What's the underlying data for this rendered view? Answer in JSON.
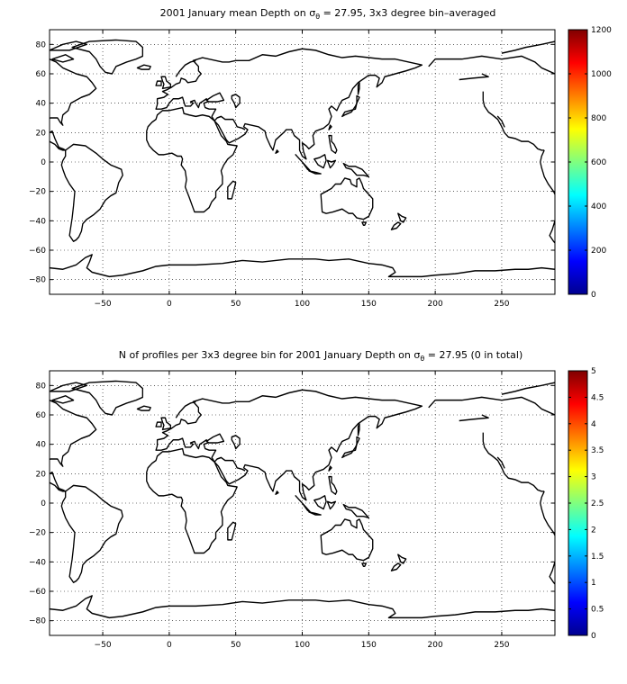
{
  "chart_data": [
    {
      "type": "heatmap",
      "title_parts": [
        "2001 January mean Depth on ",
        "σ",
        "θ",
        " = 27.95, 3x3 degree bin–averaged"
      ],
      "xlim": [
        -90,
        290
      ],
      "ylim": [
        -90,
        90
      ],
      "x_ticks": [
        -50,
        0,
        50,
        100,
        150,
        200,
        250
      ],
      "x_tick_labels": [
        "−50",
        "0",
        "50",
        "100",
        "150",
        "200",
        "250"
      ],
      "y_ticks": [
        80,
        60,
        40,
        20,
        0,
        -20,
        -40,
        -60,
        -80
      ],
      "y_tick_labels": [
        "80",
        "60",
        "40",
        "20",
        "0",
        "−20",
        "−40",
        "−60",
        "−80"
      ],
      "grid": true,
      "colorbar": {
        "min": 0,
        "max": 1200,
        "colormap": "jet",
        "ticks": [
          0,
          200,
          400,
          600,
          800,
          1000,
          1200
        ],
        "tick_labels": [
          "0",
          "200",
          "400",
          "600",
          "800",
          "1000",
          "1200"
        ]
      },
      "values": []
    },
    {
      "type": "heatmap",
      "title_parts": [
        "N of profiles per 3x3 degree bin for 2001 January Depth on ",
        "σ",
        "θ",
        " = 27.95 (0 in total)"
      ],
      "xlim": [
        -90,
        290
      ],
      "ylim": [
        -90,
        90
      ],
      "x_ticks": [
        -50,
        0,
        50,
        100,
        150,
        200,
        250
      ],
      "x_tick_labels": [
        "−50",
        "0",
        "50",
        "100",
        "150",
        "200",
        "250"
      ],
      "y_ticks": [
        80,
        60,
        40,
        20,
        0,
        -20,
        -40,
        -60,
        -80
      ],
      "y_tick_labels": [
        "80",
        "60",
        "40",
        "20",
        "0",
        "−20",
        "−40",
        "−60",
        "−80"
      ],
      "grid": true,
      "colorbar": {
        "min": 0,
        "max": 5,
        "colormap": "jet",
        "ticks": [
          0,
          0.5,
          1,
          1.5,
          2,
          2.5,
          3,
          3.5,
          4,
          4.5,
          5
        ],
        "tick_labels": [
          "0",
          "0.5",
          "1",
          "1.5",
          "2",
          "2.5",
          "3",
          "3.5",
          "4",
          "4.5",
          "5"
        ]
      },
      "values": []
    }
  ]
}
